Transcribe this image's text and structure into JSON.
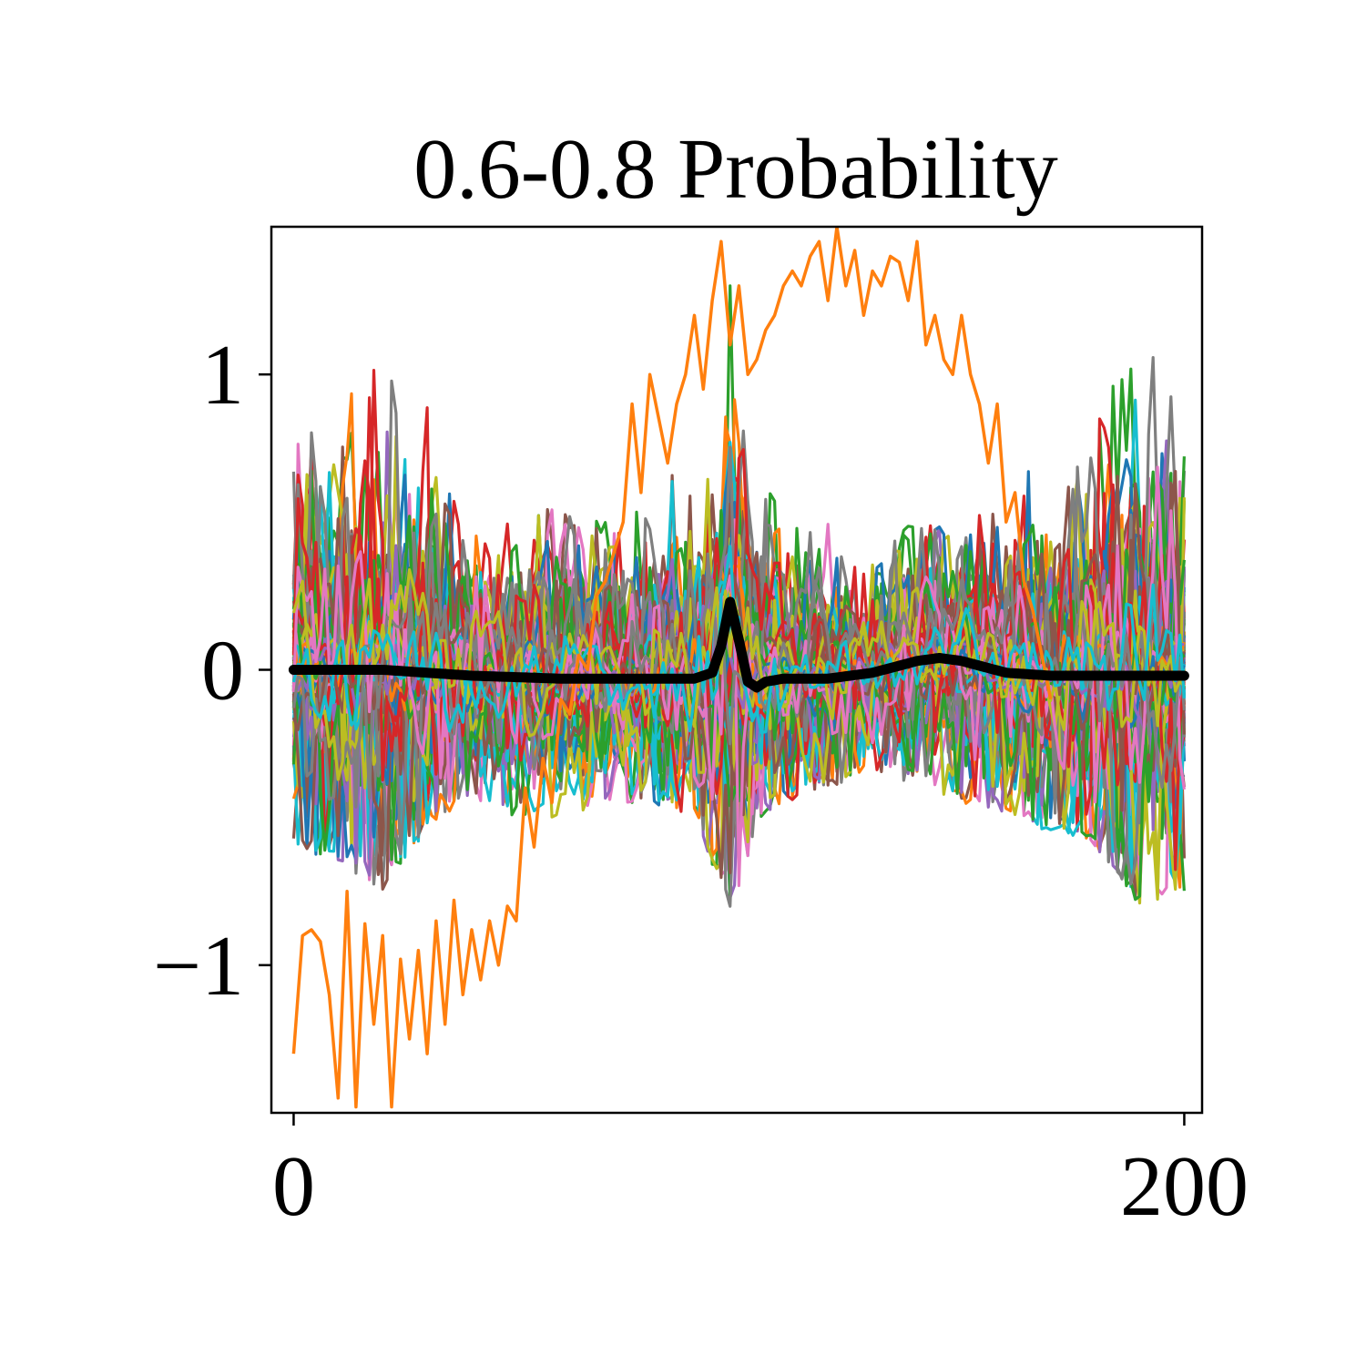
{
  "chart_data": {
    "type": "line",
    "title": "0.6-0.8 Probability",
    "xlabel": "",
    "ylabel": "",
    "xlim": [
      -5,
      204
    ],
    "ylim": [
      -1.5,
      1.5
    ],
    "x_ticks": [
      0,
      200
    ],
    "x_tick_labels": [
      "0",
      "200"
    ],
    "y_ticks": [
      1,
      0,
      -1
    ],
    "y_tick_labels": [
      "1",
      "0",
      "−1"
    ],
    "grid": false,
    "legend": "none",
    "n_points": 201,
    "series_colors": [
      "#1f77b4",
      "#ff7f0e",
      "#2ca02c",
      "#d62728",
      "#9467bd",
      "#8c564b",
      "#e377c2",
      "#7f7f7f",
      "#bcbd22",
      "#17becf"
    ],
    "mean_series": {
      "color": "#000000",
      "x": [
        0,
        20,
        40,
        60,
        80,
        90,
        94,
        96,
        98,
        100,
        102,
        104,
        106,
        110,
        120,
        130,
        140,
        145,
        150,
        160,
        170,
        180,
        190,
        200
      ],
      "y": [
        0.0,
        0.0,
        -0.02,
        -0.03,
        -0.03,
        -0.03,
        -0.01,
        0.08,
        0.23,
        0.1,
        -0.04,
        -0.06,
        -0.04,
        -0.03,
        -0.03,
        -0.01,
        0.03,
        0.04,
        0.03,
        -0.01,
        -0.02,
        -0.02,
        -0.02,
        -0.02
      ]
    },
    "outlier_series": {
      "color": "#ff7f0e",
      "x": [
        0,
        2,
        4,
        6,
        8,
        10,
        12,
        14,
        16,
        18,
        20,
        22,
        24,
        26,
        28,
        30,
        32,
        34,
        36,
        38,
        40,
        42,
        44,
        46,
        48,
        50,
        52,
        54,
        56,
        58,
        60,
        62,
        64,
        66,
        68,
        70,
        72,
        74,
        76,
        78,
        80,
        82,
        84,
        86,
        88,
        90,
        92,
        94,
        96,
        98,
        100,
        102,
        104,
        106,
        108,
        110,
        112,
        114,
        116,
        118,
        120,
        122,
        124,
        126,
        128,
        130,
        132,
        134,
        136,
        138,
        140,
        142,
        144,
        146,
        148,
        150,
        152,
        154,
        156,
        158,
        160,
        162,
        164,
        166,
        168,
        170
      ],
      "y": [
        -1.3,
        -0.9,
        -0.88,
        -0.92,
        -1.1,
        -1.45,
        -0.75,
        -1.48,
        -0.86,
        -1.2,
        -0.9,
        -1.48,
        -0.98,
        -1.25,
        -0.95,
        -1.3,
        -0.85,
        -1.2,
        -0.78,
        -1.1,
        -0.88,
        -1.05,
        -0.85,
        -1.0,
        -0.8,
        -0.85,
        -0.4,
        -0.6,
        -0.3,
        -0.45,
        -0.1,
        -0.15,
        0.05,
        0.0,
        0.25,
        0.3,
        0.4,
        0.5,
        0.9,
        0.6,
        1.0,
        0.85,
        0.7,
        0.9,
        1.0,
        1.2,
        0.95,
        1.25,
        1.45,
        1.1,
        1.3,
        1.0,
        1.05,
        1.15,
        1.2,
        1.3,
        1.35,
        1.3,
        1.4,
        1.45,
        1.25,
        1.5,
        1.3,
        1.42,
        1.2,
        1.35,
        1.3,
        1.4,
        1.38,
        1.25,
        1.45,
        1.1,
        1.2,
        1.05,
        1.0,
        1.2,
        1.0,
        0.9,
        0.7,
        0.9,
        0.5,
        0.6,
        0.3,
        0.2,
        0.05,
        -0.1
      ]
    },
    "band_envelope": {
      "x": [
        0,
        10,
        20,
        30,
        35,
        40,
        50,
        60,
        70,
        80,
        90,
        95,
        98,
        100,
        102,
        105,
        110,
        120,
        130,
        140,
        150,
        160,
        170,
        180,
        190,
        200
      ],
      "upper": [
        0.95,
        1.0,
        1.05,
        1.0,
        0.75,
        0.45,
        0.55,
        0.55,
        0.5,
        0.55,
        0.8,
        1.1,
        1.35,
        1.2,
        1.0,
        0.75,
        0.5,
        0.5,
        0.45,
        0.5,
        0.5,
        0.6,
        0.75,
        0.9,
        1.1,
        1.05
      ],
      "lower": [
        -0.6,
        -0.65,
        -0.75,
        -0.55,
        -0.5,
        -0.45,
        -0.5,
        -0.5,
        -0.45,
        -0.45,
        -0.5,
        -0.7,
        -0.82,
        -0.75,
        -0.65,
        -0.5,
        -0.45,
        -0.4,
        -0.35,
        -0.4,
        -0.45,
        -0.5,
        -0.55,
        -0.6,
        -0.8,
        -0.75
      ]
    }
  }
}
